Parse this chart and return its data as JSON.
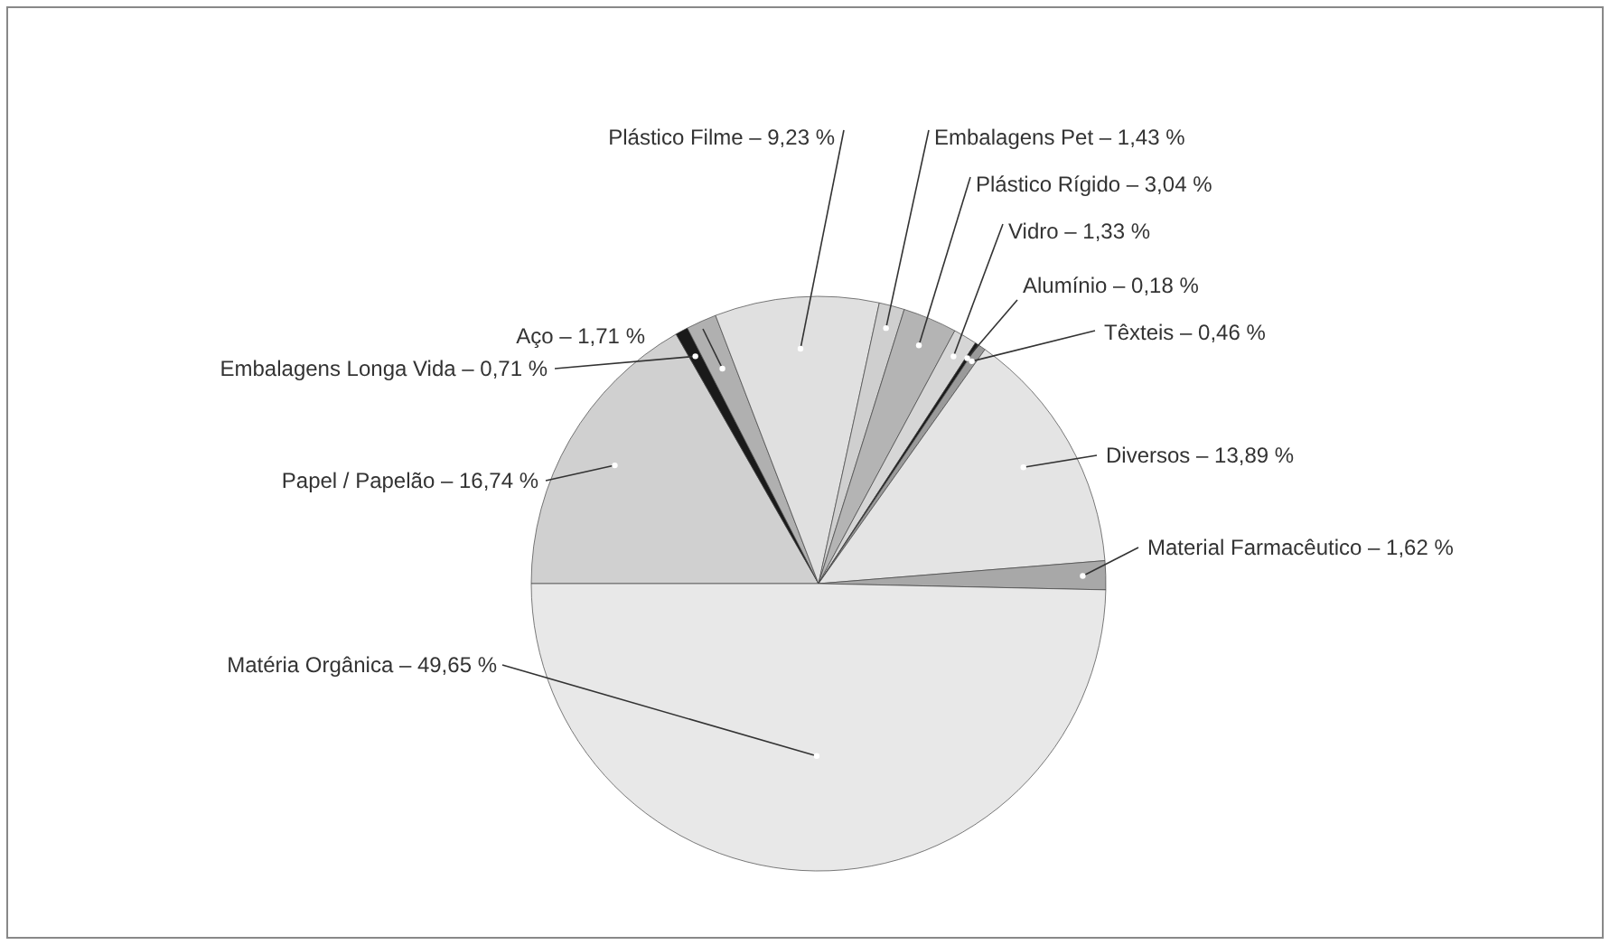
{
  "chart_data": {
    "type": "pie",
    "categories": [
      "Papel / Papelão",
      "Embalagens Longa Vida",
      "Aço",
      "Plástico Filme",
      "Embalagens Pet",
      "Plástico Rígido",
      "Vidro",
      "Alumínio",
      "Têxteis",
      "Diversos",
      "Material Farmacêutico",
      "Matéria Orgânica"
    ],
    "values": [
      16.74,
      0.71,
      1.71,
      9.23,
      1.43,
      3.04,
      1.33,
      0.18,
      0.46,
      13.89,
      1.62,
      49.65
    ],
    "value_labels": [
      "16,74 %",
      "0,71 %",
      "1,71 %",
      "9,23 %",
      "1,43 %",
      "3,04 %",
      "1,33 %",
      "0,18 %",
      "0,46 %",
      "13,89 %",
      "1,62 %",
      "49,65 %"
    ],
    "colors": [
      "#d0d0d0",
      "#1a1a1a",
      "#b0b0b0",
      "#e0e0e0",
      "#cfcfcf",
      "#b4b4b4",
      "#d6d6d6",
      "#1a1a1a",
      "#9a9a9a",
      "#e4e4e4",
      "#a8a8a8",
      "#e8e8e8"
    ]
  }
}
